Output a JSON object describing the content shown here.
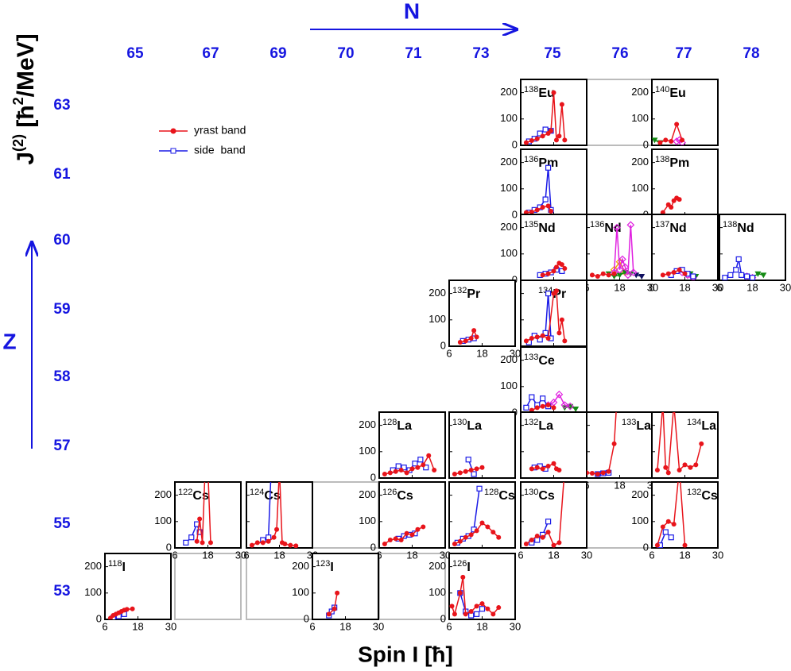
{
  "figure": {
    "x_label": "Spin I [ħ]",
    "y_label_parts": [
      "J",
      "(2)",
      " [ħ",
      "2",
      "/MeV]"
    ],
    "n_title": "N",
    "z_title": "Z",
    "n_labels": [
      65,
      67,
      69,
      70,
      71,
      73,
      75,
      76,
      77,
      78
    ],
    "z_labels": [
      63,
      61,
      60,
      59,
      58,
      57,
      55,
      53
    ],
    "legend": [
      {
        "name": "yrast band",
        "color": "#e8141b",
        "marker": "circle"
      },
      {
        "name": "side  band",
        "color": "#1a1ae6",
        "marker": "square"
      }
    ],
    "axes": {
      "xlim": [
        6,
        30
      ],
      "ylim": [
        0,
        250
      ],
      "xticks": [
        6,
        18,
        30
      ],
      "yticks": [
        0,
        100,
        200
      ]
    }
  },
  "chart_data": [
    {
      "type": "line",
      "mass": "138",
      "element": "Eu",
      "yrast": {
        "x": [
          8,
          10,
          12,
          14,
          16,
          17,
          18,
          19,
          20,
          21,
          22
        ],
        "values": [
          10,
          18,
          25,
          35,
          45,
          55,
          200,
          20,
          35,
          155,
          20
        ]
      },
      "side": {
        "x": [
          9,
          11,
          13,
          15,
          17
        ],
        "values": [
          15,
          25,
          45,
          60,
          55
        ]
      }
    },
    {
      "type": "line",
      "mass": "140",
      "element": "Eu",
      "yrast": {
        "x": [
          9,
          11,
          13,
          15,
          17
        ],
        "values": [
          10,
          20,
          15,
          80,
          20
        ]
      },
      "side": {
        "x": [],
        "values": []
      },
      "other": [
        {
          "color": "#138a13",
          "marker": "triangle",
          "x": [
            7,
            9
          ],
          "values": [
            20,
            10
          ]
        },
        {
          "color": "#e020e0",
          "marker": "diamond",
          "x": [
            15,
            16,
            17
          ],
          "values": [
            15,
            20,
            10
          ]
        }
      ]
    },
    {
      "type": "line",
      "mass": "136",
      "element": "Pm",
      "yrast": {
        "x": [
          8,
          10,
          12,
          14,
          16,
          17
        ],
        "values": [
          10,
          12,
          20,
          30,
          35,
          15
        ]
      },
      "side": {
        "x": [
          9,
          11,
          13,
          15,
          16,
          17
        ],
        "values": [
          10,
          20,
          30,
          60,
          180,
          20
        ]
      }
    },
    {
      "type": "line",
      "mass": "138",
      "element": "Pm",
      "yrast": {
        "x": [
          10,
          12,
          13,
          14,
          15,
          16
        ],
        "values": [
          10,
          40,
          30,
          55,
          65,
          60
        ]
      },
      "side": {
        "x": [],
        "values": []
      }
    },
    {
      "type": "line",
      "mass": "135",
      "element": "Nd",
      "yrast": {
        "x": [
          14,
          16,
          18,
          19,
          20,
          21,
          22
        ],
        "values": [
          20,
          25,
          35,
          50,
          65,
          60,
          45
        ]
      },
      "side": {
        "x": [
          13,
          15,
          17,
          19,
          21
        ],
        "values": [
          20,
          25,
          30,
          40,
          35
        ]
      }
    },
    {
      "type": "line",
      "mass": "136",
      "element": "Nd",
      "yrast": {
        "x": [
          8,
          10,
          12,
          14,
          16
        ],
        "values": [
          20,
          15,
          25,
          20,
          25
        ]
      },
      "side": {
        "x": [],
        "values": []
      },
      "other": [
        {
          "color": "#e020e0",
          "marker": "diamond",
          "x": [
            16,
            17,
            18,
            19,
            20,
            21,
            22,
            23
          ],
          "values": [
            30,
            200,
            40,
            80,
            50,
            20,
            210,
            30
          ]
        },
        {
          "color": "#138a13",
          "marker": "triangle",
          "x": [
            14,
            16,
            18,
            20,
            22
          ],
          "values": [
            25,
            15,
            20,
            30,
            25
          ]
        },
        {
          "color": "#f0a000",
          "marker": "diamond",
          "x": [
            16,
            18,
            20
          ],
          "values": [
            40,
            70,
            30
          ]
        },
        {
          "color": "#101060",
          "marker": "triangle",
          "x": [
            24,
            26
          ],
          "values": [
            20,
            15
          ]
        }
      ]
    },
    {
      "type": "line",
      "mass": "137",
      "element": "Nd",
      "yrast": {
        "x": [
          10,
          12,
          14,
          16,
          18
        ],
        "values": [
          20,
          25,
          30,
          40,
          25
        ]
      },
      "side": {
        "x": [
          13,
          15,
          17,
          19,
          21
        ],
        "values": [
          20,
          35,
          40,
          25,
          15
        ]
      },
      "other": [
        {
          "color": "#e020e0",
          "marker": "diamond",
          "x": [
            17,
            19,
            21
          ],
          "values": [
            30,
            20,
            10
          ]
        },
        {
          "color": "#138a13",
          "marker": "triangle",
          "x": [
            20,
            22
          ],
          "values": [
            25,
            15
          ]
        }
      ]
    },
    {
      "type": "line",
      "mass": "138",
      "element": "Nd",
      "yrast": {
        "x": [],
        "values": []
      },
      "side": {
        "x": [
          8,
          10,
          12,
          13,
          14,
          16,
          18
        ],
        "values": [
          10,
          20,
          40,
          80,
          20,
          15,
          10
        ]
      },
      "other": [
        {
          "color": "#138a13",
          "marker": "triangle",
          "x": [
            18,
            20,
            22
          ],
          "values": [
            10,
            25,
            20
          ]
        },
        {
          "color": "#e020e0",
          "marker": "diamond",
          "x": [
            16,
            18
          ],
          "values": [
            15,
            10
          ]
        }
      ]
    },
    {
      "type": "line",
      "mass": "132",
      "element": "Pr",
      "yrast": {
        "x": [
          10,
          12,
          14,
          15,
          16
        ],
        "values": [
          15,
          20,
          30,
          60,
          35
        ]
      },
      "side": {
        "x": [
          11,
          13,
          15
        ],
        "values": [
          20,
          25,
          30
        ]
      }
    },
    {
      "type": "line",
      "mass": "134",
      "element": "Pr",
      "yrast": {
        "x": [
          8,
          10,
          12,
          14,
          16,
          18,
          19,
          20,
          21,
          22
        ],
        "values": [
          20,
          30,
          35,
          40,
          30,
          200,
          210,
          50,
          100,
          20
        ]
      },
      "side": {
        "x": [
          9,
          11,
          13,
          15,
          16,
          17
        ],
        "values": [
          15,
          40,
          25,
          50,
          200,
          30
        ]
      }
    },
    {
      "type": "line",
      "mass": "133",
      "element": "Ce",
      "yrast": {
        "x": [
          10,
          12,
          14,
          16,
          18
        ],
        "values": [
          10,
          20,
          25,
          30,
          20
        ]
      },
      "side": {
        "x": [
          8,
          10,
          12,
          14,
          16
        ],
        "values": [
          20,
          60,
          30,
          55,
          25
        ]
      },
      "other": [
        {
          "color": "#e020e0",
          "marker": "diamond",
          "x": [
            16,
            18,
            20,
            22,
            24
          ],
          "values": [
            30,
            40,
            70,
            30,
            25
          ]
        },
        {
          "color": "#138a13",
          "marker": "triangle",
          "x": [
            22,
            24,
            26
          ],
          "values": [
            20,
            25,
            15
          ]
        }
      ]
    },
    {
      "type": "line",
      "mass": "128",
      "element": "La",
      "yrast": {
        "x": [
          8,
          10,
          12,
          14,
          16,
          18,
          20,
          22,
          24,
          26
        ],
        "values": [
          15,
          20,
          25,
          30,
          20,
          35,
          40,
          50,
          85,
          30
        ]
      },
      "side": {
        "x": [
          11,
          13,
          15,
          17,
          19,
          21,
          23
        ],
        "values": [
          30,
          45,
          40,
          30,
          55,
          70,
          40
        ]
      }
    },
    {
      "type": "line",
      "mass": "130",
      "element": "La",
      "yrast": {
        "x": [
          8,
          10,
          12,
          14,
          16,
          18
        ],
        "values": [
          15,
          20,
          25,
          30,
          35,
          40
        ]
      },
      "side": {
        "x": [
          13,
          15
        ],
        "values": [
          70,
          15
        ]
      }
    },
    {
      "type": "line",
      "mass": "132",
      "element": "La",
      "yrast": {
        "x": [
          10,
          12,
          14,
          16,
          18,
          19,
          20
        ],
        "values": [
          35,
          40,
          35,
          45,
          55,
          35,
          30
        ]
      },
      "side": {
        "x": [
          11,
          13,
          15
        ],
        "values": [
          40,
          45,
          35
        ]
      }
    },
    {
      "type": "line",
      "mass": "133",
      "element": "La",
      "yrast": {
        "x": [
          6,
          8,
          10,
          12,
          14,
          16,
          17
        ],
        "values": [
          20,
          18,
          15,
          20,
          25,
          130,
          300
        ]
      },
      "side": {
        "x": [
          10,
          12,
          14
        ],
        "values": [
          15,
          18,
          20
        ]
      }
    },
    {
      "type": "line",
      "mass": "134",
      "element": "La",
      "yrast": {
        "x": [
          8,
          10,
          11,
          12,
          14,
          16,
          18,
          20,
          22,
          24
        ],
        "values": [
          30,
          280,
          40,
          20,
          280,
          30,
          50,
          40,
          50,
          130
        ]
      },
      "side": {
        "x": [],
        "values": []
      }
    },
    {
      "type": "line",
      "mass": "122",
      "element": "Cs",
      "yrast": {
        "x": [
          14,
          15,
          16,
          17,
          18,
          19
        ],
        "values": [
          25,
          110,
          20,
          300,
          300,
          20
        ]
      },
      "side": {
        "x": [
          10,
          12,
          14,
          15
        ],
        "values": [
          20,
          40,
          90,
          60
        ]
      }
    },
    {
      "type": "line",
      "mass": "124",
      "element": "Cs",
      "yrast": {
        "x": [
          8,
          10,
          12,
          14,
          16,
          17,
          18,
          19,
          20,
          22,
          24
        ],
        "values": [
          10,
          20,
          20,
          25,
          40,
          70,
          300,
          20,
          15,
          10,
          8
        ]
      },
      "side": {
        "x": [
          12,
          14,
          15
        ],
        "values": [
          30,
          40,
          300
        ]
      }
    },
    {
      "type": "line",
      "mass": "126",
      "element": "Cs",
      "yrast": {
        "x": [
          8,
          10,
          12,
          14,
          16,
          18,
          20,
          22
        ],
        "values": [
          15,
          30,
          35,
          30,
          55,
          50,
          70,
          80
        ]
      },
      "side": {
        "x": [
          13,
          15,
          17,
          19
        ],
        "values": [
          35,
          45,
          50,
          55
        ]
      }
    },
    {
      "type": "line",
      "mass": "128",
      "element": "Cs",
      "yrast": {
        "x": [
          8,
          10,
          12,
          14,
          16,
          18,
          20,
          22,
          24
        ],
        "values": [
          15,
          25,
          40,
          50,
          65,
          95,
          80,
          60,
          40
        ]
      },
      "side": {
        "x": [
          9,
          11,
          13,
          15,
          17
        ],
        "values": [
          20,
          35,
          45,
          70,
          225
        ]
      }
    },
    {
      "type": "line",
      "mass": "130",
      "element": "Cs",
      "yrast": {
        "x": [
          8,
          10,
          12,
          14,
          16,
          18,
          20,
          22
        ],
        "values": [
          15,
          30,
          45,
          40,
          60,
          10,
          20,
          300
        ]
      },
      "side": {
        "x": [
          10,
          12,
          14,
          16
        ],
        "values": [
          20,
          30,
          50,
          100
        ]
      }
    },
    {
      "type": "line",
      "mass": "132",
      "element": "Cs",
      "yrast": {
        "x": [
          8,
          10,
          12,
          14,
          16,
          18
        ],
        "values": [
          10,
          80,
          100,
          90,
          300,
          10
        ]
      },
      "side": {
        "x": [
          9,
          11,
          13
        ],
        "values": [
          10,
          60,
          40
        ]
      }
    },
    {
      "type": "line",
      "mass": "118",
      "element": "I",
      "yrast": {
        "x": [
          8,
          9,
          10,
          11,
          12,
          13,
          14,
          16
        ],
        "values": [
          5,
          15,
          20,
          25,
          30,
          35,
          38,
          40
        ]
      },
      "side": {
        "x": [
          9,
          11,
          13
        ],
        "values": [
          5,
          12,
          20
        ]
      }
    },
    {
      "type": "line",
      "mass": "123",
      "element": "I",
      "yrast": {
        "x": [
          12,
          14,
          15
        ],
        "values": [
          20,
          40,
          100
        ]
      },
      "side": {
        "x": [
          12,
          13,
          14
        ],
        "values": [
          15,
          30,
          45
        ]
      }
    },
    {
      "type": "line",
      "mass": "126",
      "element": "I",
      "yrast": {
        "x": [
          7,
          8,
          10,
          11,
          12,
          14,
          16,
          18,
          20,
          22,
          24
        ],
        "values": [
          50,
          20,
          100,
          160,
          20,
          30,
          50,
          60,
          40,
          20,
          45
        ]
      },
      "side": {
        "x": [
          10,
          12,
          14,
          16,
          18
        ],
        "values": [
          100,
          30,
          15,
          20,
          40
        ]
      }
    }
  ]
}
